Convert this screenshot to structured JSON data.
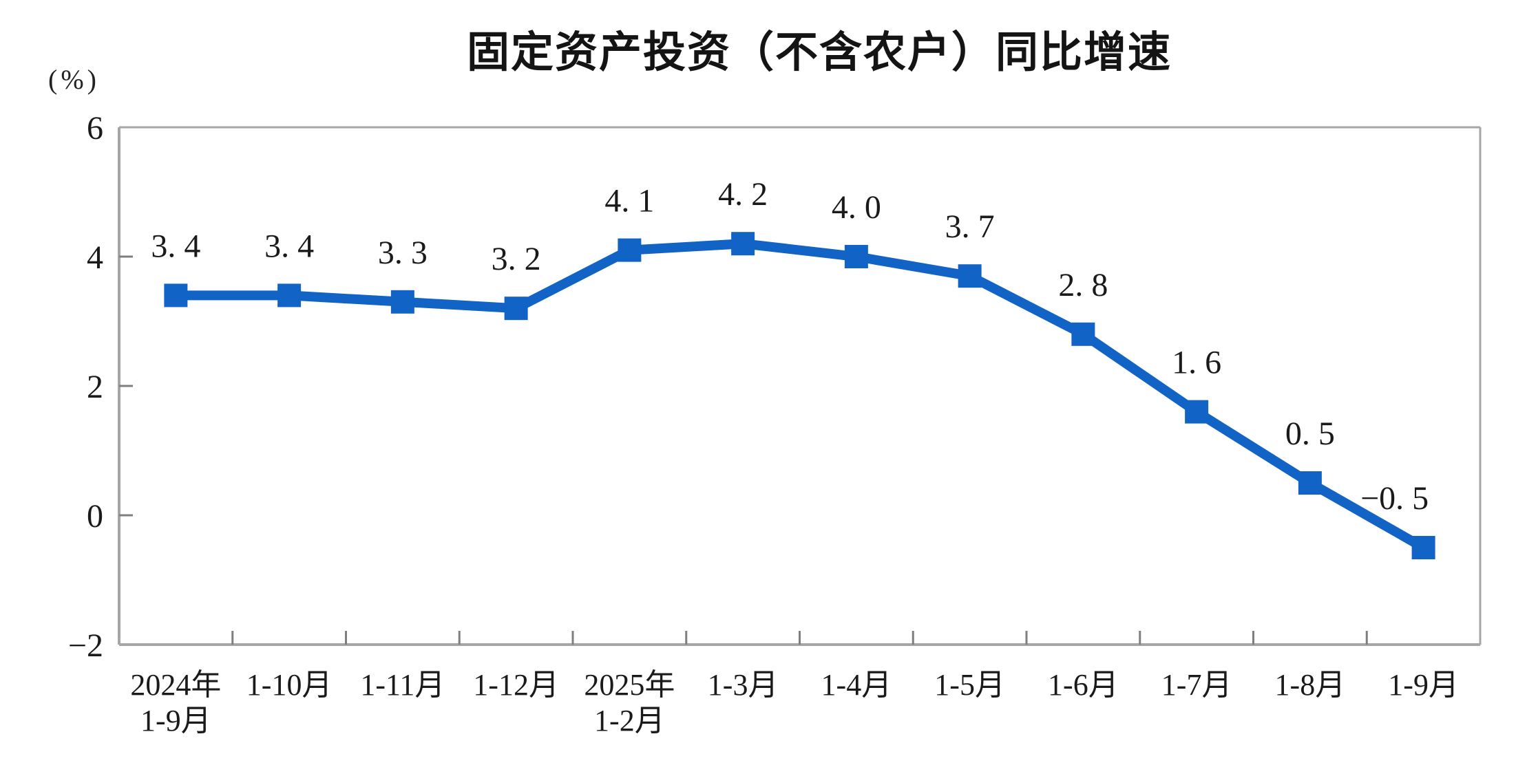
{
  "chart_data": {
    "type": "line",
    "title": "固定资产投资（不含农户）同比增速",
    "unit_label": "(%)",
    "categories": [
      [
        "2024年",
        "1-9月"
      ],
      [
        "1-10月"
      ],
      [
        "1-11月"
      ],
      [
        "1-12月"
      ],
      [
        "2025年",
        "1-2月"
      ],
      [
        "1-3月"
      ],
      [
        "1-4月"
      ],
      [
        "1-5月"
      ],
      [
        "1-6月"
      ],
      [
        "1-7月"
      ],
      [
        "1-8月"
      ],
      [
        "1-9月"
      ]
    ],
    "values": [
      3.4,
      3.4,
      3.3,
      3.2,
      4.1,
      4.2,
      4.0,
      3.7,
      2.8,
      1.6,
      0.5,
      -0.5
    ],
    "data_labels": [
      "3.4",
      "3.4",
      "3.3",
      "3.2",
      "4.1",
      "4.2",
      "4.0",
      "3.7",
      "2.8",
      "1.6",
      "0.5",
      "-0.5"
    ],
    "ylim": [
      -2,
      6
    ],
    "y_ticks": [
      6,
      4,
      2,
      0,
      -2
    ],
    "grid": false,
    "legend": "none",
    "line_color": "#1263c6",
    "marker_color": "#1263c6",
    "box_color": "#a6a6a6",
    "tick_color": "#7f7f7f",
    "text_color": "#1a1a1a"
  }
}
